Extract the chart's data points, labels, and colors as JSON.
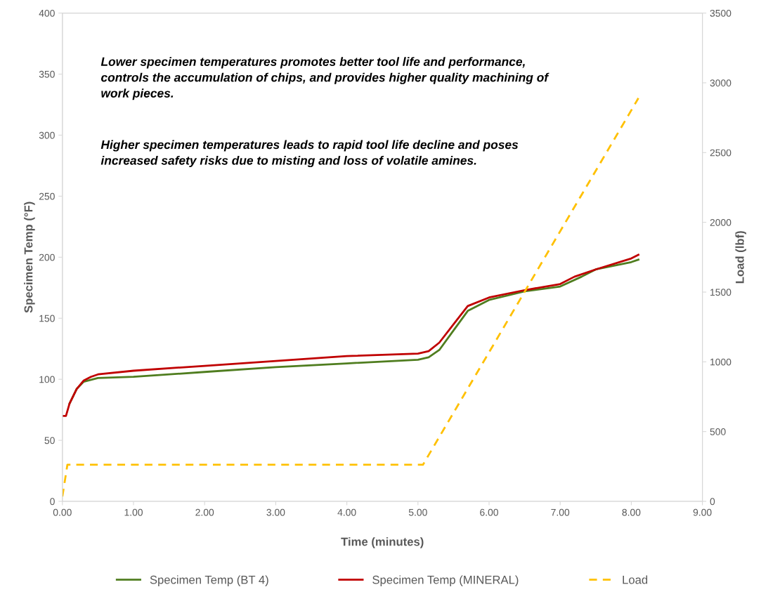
{
  "chart_data": {
    "type": "line",
    "xlabel": "Time (minutes)",
    "ylabel": "Specimen Temp (°F)",
    "y2label": "Load (lbf)",
    "annotations": [
      "Lower specimen temperatures promotes better tool life and performance, controls the accumulation of chips, and provides higher quality machining of work pieces.",
      "Higher specimen temperatures leads to rapid tool life decline and poses increased safety risks due to misting and loss of volatile amines."
    ],
    "xlim": [
      0,
      9
    ],
    "xticks": [
      {
        "value": 0,
        "label": "0.00"
      },
      {
        "value": 1,
        "label": "1.00"
      },
      {
        "value": 2,
        "label": "2.00"
      },
      {
        "value": 3,
        "label": "3.00"
      },
      {
        "value": 4,
        "label": "4.00"
      },
      {
        "value": 5,
        "label": "5.00"
      },
      {
        "value": 6,
        "label": "6.00"
      },
      {
        "value": 7,
        "label": "7.00"
      },
      {
        "value": 8,
        "label": "8.00"
      },
      {
        "value": 9,
        "label": "9.00"
      }
    ],
    "ylim": [
      0,
      400
    ],
    "yticks": [
      0,
      50,
      100,
      150,
      200,
      250,
      300,
      350,
      400
    ],
    "y2lim": [
      0,
      3500
    ],
    "y2ticks": [
      0,
      500,
      1000,
      1500,
      2000,
      2500,
      3000,
      3500
    ],
    "grid": false,
    "legend": "bottom",
    "marker": "none",
    "series": [
      {
        "name": "Specimen Temp (BT 4)",
        "color": "#4f7d1f",
        "line_style": "solid",
        "x": [
          0.1,
          0.2,
          0.3,
          0.5,
          1.0,
          2.0,
          3.0,
          4.0,
          5.0,
          5.15,
          5.3,
          5.5,
          5.7,
          6.0,
          6.5,
          7.0,
          7.3,
          7.5,
          8.0,
          8.1
        ],
        "values": [
          80,
          92,
          98,
          101,
          102,
          106,
          110,
          113,
          116,
          118,
          124,
          140,
          156,
          165,
          172,
          176,
          184,
          190,
          196,
          198
        ]
      },
      {
        "name": "Specimen Temp (MINERAL)",
        "color": "#c00000",
        "line_style": "solid",
        "x": [
          0,
          0.05,
          0.1,
          0.2,
          0.3,
          0.4,
          0.5,
          1.0,
          2.0,
          3.0,
          4.0,
          5.0,
          5.15,
          5.3,
          5.5,
          5.7,
          6.0,
          6.5,
          7.0,
          7.2,
          7.5,
          8.0,
          8.1
        ],
        "values": [
          70,
          70,
          80,
          92,
          99,
          102,
          104,
          107,
          111,
          115,
          119,
          121,
          123,
          130,
          145,
          160,
          167,
          173,
          178,
          184,
          190,
          199,
          202
        ]
      },
      {
        "name": "Load",
        "color": "#ffc000",
        "line_style": "dashed",
        "axis": "y2",
        "x": [
          0,
          0.07,
          5.07,
          8.1
        ],
        "values": [
          35,
          262,
          262,
          2890
        ]
      }
    ]
  }
}
